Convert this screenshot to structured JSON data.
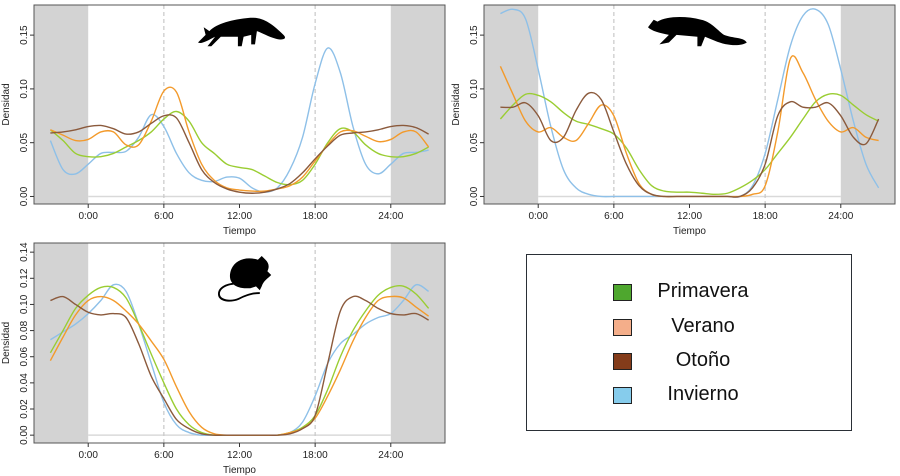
{
  "colors": {
    "Primavera": "#9acd32",
    "Verano": "#f39a2b",
    "Otoño": "#8b5a3c",
    "Invierno": "#8ec0e8",
    "night_shade": "#d3d3d3"
  },
  "legend": [
    {
      "label": "Primavera",
      "swatch": "#4ea72e"
    },
    {
      "label": "Verano",
      "swatch": "#f4ae8a"
    },
    {
      "label": "Otoño",
      "swatch": "#843c1a"
    },
    {
      "label": "Invierno",
      "swatch": "#86ccec"
    }
  ],
  "chart_data": [
    {
      "type": "line",
      "icon": "fox-silhouette-icon",
      "xlabel": "Tiempo",
      "ylabel": "Densidad",
      "xticks": [
        "0:00",
        "6:00",
        "12:00",
        "18:00",
        "24:00"
      ],
      "xtick_values": [
        0,
        6,
        12,
        18,
        24
      ],
      "yticks": [
        "0.00",
        "0.05",
        "0.10",
        "0.15"
      ],
      "ytick_values": [
        0,
        0.05,
        0.1,
        0.15
      ],
      "xlim": [
        -4.3,
        28.3
      ],
      "ylim": [
        -0.007,
        0.178
      ],
      "shaded_night": [
        [
          -4.3,
          0
        ],
        [
          24,
          28.3
        ]
      ],
      "dashed_vlines": [
        6,
        18
      ],
      "x": [
        -3,
        -2,
        -1,
        0,
        1,
        2,
        3,
        4,
        5,
        6,
        7,
        8,
        9,
        10,
        11,
        12,
        13,
        14,
        15,
        16,
        17,
        18,
        19,
        20,
        21,
        22,
        23,
        24,
        25,
        26,
        27
      ],
      "series": [
        {
          "name": "Invierno",
          "values": [
            0.052,
            0.025,
            0.021,
            0.03,
            0.04,
            0.041,
            0.042,
            0.055,
            0.076,
            0.065,
            0.04,
            0.022,
            0.015,
            0.014,
            0.018,
            0.017,
            0.008,
            0.004,
            0.008,
            0.025,
            0.055,
            0.105,
            0.138,
            0.115,
            0.065,
            0.03,
            0.021,
            0.03,
            0.04,
            0.041,
            0.043
          ]
        },
        {
          "name": "Primavera",
          "values": [
            0.062,
            0.052,
            0.04,
            0.037,
            0.037,
            0.04,
            0.046,
            0.052,
            0.06,
            0.072,
            0.079,
            0.07,
            0.05,
            0.04,
            0.03,
            0.027,
            0.025,
            0.019,
            0.013,
            0.011,
            0.015,
            0.03,
            0.05,
            0.063,
            0.06,
            0.048,
            0.04,
            0.037,
            0.037,
            0.04,
            0.046
          ]
        },
        {
          "name": "Verano",
          "values": [
            0.062,
            0.057,
            0.052,
            0.053,
            0.06,
            0.06,
            0.048,
            0.048,
            0.07,
            0.098,
            0.097,
            0.06,
            0.03,
            0.015,
            0.008,
            0.006,
            0.005,
            0.005,
            0.007,
            0.01,
            0.018,
            0.033,
            0.048,
            0.06,
            0.061,
            0.056,
            0.051,
            0.053,
            0.06,
            0.06,
            0.046
          ]
        },
        {
          "name": "Otoño",
          "values": [
            0.059,
            0.06,
            0.062,
            0.065,
            0.066,
            0.063,
            0.058,
            0.06,
            0.068,
            0.075,
            0.073,
            0.05,
            0.025,
            0.013,
            0.007,
            0.004,
            0.003,
            0.004,
            0.007,
            0.012,
            0.022,
            0.035,
            0.047,
            0.057,
            0.059,
            0.06,
            0.062,
            0.065,
            0.066,
            0.064,
            0.058
          ]
        }
      ]
    },
    {
      "type": "line",
      "icon": "marten-silhouette-icon",
      "xlabel": "Tiempo",
      "ylabel": "Densidad",
      "xticks": [
        "0:00",
        "6:00",
        "12:00",
        "18:00",
        "24:00"
      ],
      "xtick_values": [
        0,
        6,
        12,
        18,
        24
      ],
      "yticks": [
        "0.00",
        "0.05",
        "0.10",
        "0.15"
      ],
      "ytick_values": [
        0,
        0.05,
        0.1,
        0.15
      ],
      "xlim": [
        -4.3,
        28.3
      ],
      "ylim": [
        -0.007,
        0.178
      ],
      "shaded_night": [
        [
          -4.3,
          0
        ],
        [
          24,
          28.3
        ]
      ],
      "dashed_vlines": [
        6,
        18
      ],
      "x": [
        -3,
        -2,
        -1,
        0,
        1,
        2,
        3,
        4,
        5,
        6,
        7,
        8,
        9,
        10,
        11,
        12,
        13,
        14,
        15,
        16,
        17,
        18,
        19,
        20,
        21,
        22,
        23,
        24,
        25,
        26,
        27
      ],
      "series": [
        {
          "name": "Invierno",
          "values": [
            0.17,
            0.174,
            0.165,
            0.118,
            0.065,
            0.025,
            0.008,
            0.002,
            0,
            0,
            0,
            0,
            0,
            0,
            0,
            0,
            0,
            0,
            0,
            0,
            0.01,
            0.04,
            0.09,
            0.14,
            0.168,
            0.174,
            0.16,
            0.118,
            0.07,
            0.03,
            0.008
          ]
        },
        {
          "name": "Primavera",
          "values": [
            0.072,
            0.085,
            0.095,
            0.094,
            0.088,
            0.078,
            0.07,
            0.067,
            0.063,
            0.058,
            0.045,
            0.025,
            0.01,
            0.005,
            0.004,
            0.004,
            0.003,
            0.002,
            0.003,
            0.008,
            0.015,
            0.025,
            0.04,
            0.055,
            0.072,
            0.088,
            0.095,
            0.094,
            0.085,
            0.076,
            0.07
          ]
        },
        {
          "name": "Verano",
          "values": [
            0.121,
            0.095,
            0.07,
            0.06,
            0.064,
            0.055,
            0.052,
            0.068,
            0.085,
            0.075,
            0.04,
            0.012,
            0.002,
            0,
            0,
            0,
            0,
            0,
            0,
            0,
            0.002,
            0.01,
            0.06,
            0.128,
            0.115,
            0.09,
            0.07,
            0.06,
            0.064,
            0.055,
            0.052
          ]
        },
        {
          "name": "Otoño",
          "values": [
            0.083,
            0.083,
            0.087,
            0.075,
            0.052,
            0.055,
            0.08,
            0.096,
            0.09,
            0.06,
            0.03,
            0.01,
            0.002,
            0,
            0,
            0,
            0,
            0,
            0,
            0,
            0.008,
            0.03,
            0.075,
            0.088,
            0.083,
            0.083,
            0.087,
            0.075,
            0.055,
            0.049,
            0.072
          ]
        }
      ]
    },
    {
      "type": "line",
      "icon": "mouse-silhouette-icon",
      "xlabel": "Tiempo",
      "ylabel": "Densidad",
      "xticks": [
        "0:00",
        "6:00",
        "12:00",
        "18:00",
        "24:00"
      ],
      "xtick_values": [
        0,
        6,
        12,
        18,
        24
      ],
      "yticks": [
        "0.00",
        "0.02",
        "0.04",
        "0.06",
        "0.08",
        "0.10",
        "0.12",
        "0.14"
      ],
      "ytick_values": [
        0,
        0.02,
        0.04,
        0.06,
        0.08,
        0.1,
        0.12,
        0.14
      ],
      "xlim": [
        -4.3,
        28.3
      ],
      "ylim": [
        -0.006,
        0.147
      ],
      "shaded_night": [
        [
          -4.3,
          0
        ],
        [
          24,
          28.3
        ]
      ],
      "dashed_vlines": [
        6,
        18
      ],
      "x": [
        -3,
        -2,
        -1,
        0,
        1,
        2,
        3,
        4,
        5,
        6,
        7,
        8,
        9,
        10,
        11,
        12,
        13,
        14,
        15,
        16,
        17,
        18,
        19,
        20,
        21,
        22,
        23,
        24,
        25,
        26,
        27
      ],
      "series": [
        {
          "name": "Invierno",
          "values": [
            0.073,
            0.079,
            0.085,
            0.093,
            0.103,
            0.115,
            0.11,
            0.085,
            0.055,
            0.025,
            0.008,
            0.002,
            0,
            0,
            0,
            0,
            0,
            0,
            0,
            0.002,
            0.01,
            0.03,
            0.055,
            0.07,
            0.077,
            0.085,
            0.09,
            0.093,
            0.103,
            0.115,
            0.11
          ]
        },
        {
          "name": "Primavera",
          "values": [
            0.063,
            0.08,
            0.097,
            0.107,
            0.113,
            0.113,
            0.105,
            0.085,
            0.062,
            0.04,
            0.02,
            0.008,
            0.002,
            0,
            0,
            0,
            0,
            0,
            0,
            0.002,
            0.006,
            0.015,
            0.035,
            0.06,
            0.08,
            0.095,
            0.107,
            0.113,
            0.114,
            0.108,
            0.097
          ]
        },
        {
          "name": "Verano",
          "values": [
            0.057,
            0.075,
            0.092,
            0.103,
            0.106,
            0.103,
            0.095,
            0.085,
            0.072,
            0.058,
            0.037,
            0.018,
            0.006,
            0.001,
            0,
            0,
            0,
            0,
            0,
            0.002,
            0.005,
            0.013,
            0.03,
            0.05,
            0.072,
            0.09,
            0.103,
            0.106,
            0.105,
            0.098,
            0.091
          ]
        },
        {
          "name": "Otoño",
          "values": [
            0.103,
            0.106,
            0.1,
            0.094,
            0.092,
            0.093,
            0.09,
            0.07,
            0.045,
            0.028,
            0.012,
            0.005,
            0.001,
            0,
            0,
            0,
            0,
            0,
            0,
            0.001,
            0.005,
            0.015,
            0.055,
            0.095,
            0.106,
            0.103,
            0.097,
            0.093,
            0.092,
            0.093,
            0.088
          ]
        }
      ]
    }
  ]
}
